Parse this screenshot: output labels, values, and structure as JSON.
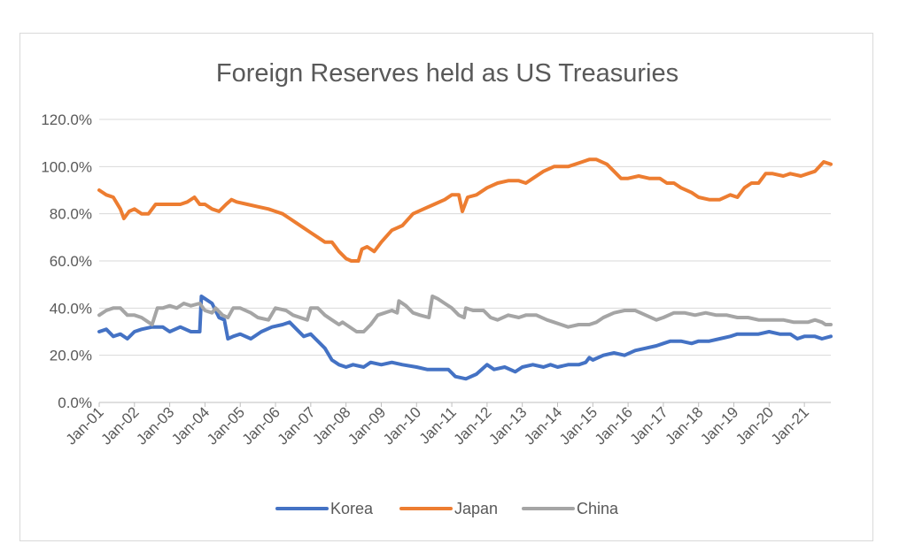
{
  "chart_data": {
    "type": "line",
    "title": "Foreign Reserves held as US Treasuries",
    "xlabel": "",
    "ylabel": "",
    "ylim": [
      0,
      120
    ],
    "yticks": [
      "0.0%",
      "20.0%",
      "40.0%",
      "60.0%",
      "80.0%",
      "100.0%",
      "120.0%"
    ],
    "yticks_values": [
      0,
      20,
      40,
      60,
      80,
      100,
      120
    ],
    "xlim": [
      2001.0,
      2021.75
    ],
    "xticks": [
      "Jan-01",
      "Jan-02",
      "Jan-03",
      "Jan-04",
      "Jan-05",
      "Jan-06",
      "Jan-07",
      "Jan-08",
      "Jan-09",
      "Jan-10",
      "Jan-11",
      "Jan-12",
      "Jan-13",
      "Jan-14",
      "Jan-15",
      "Jan-16",
      "Jan-17",
      "Jan-18",
      "Jan-19",
      "Jan-20",
      "Jan-21"
    ],
    "xticks_values": [
      2001,
      2002,
      2003,
      2004,
      2005,
      2006,
      2007,
      2008,
      2009,
      2010,
      2011,
      2012,
      2013,
      2014,
      2015,
      2016,
      2017,
      2018,
      2019,
      2020,
      2021
    ],
    "grid": true,
    "legend_position": "bottom",
    "series": [
      {
        "name": "Korea",
        "color": "#4472c4",
        "points": [
          [
            2001.0,
            30
          ],
          [
            2001.2,
            31
          ],
          [
            2001.4,
            28
          ],
          [
            2001.6,
            29
          ],
          [
            2001.8,
            27
          ],
          [
            2002.0,
            30
          ],
          [
            2002.2,
            31
          ],
          [
            2002.5,
            32
          ],
          [
            2002.8,
            32
          ],
          [
            2003.0,
            30
          ],
          [
            2003.3,
            32
          ],
          [
            2003.6,
            30
          ],
          [
            2003.85,
            30
          ],
          [
            2003.9,
            45
          ],
          [
            2004.0,
            44
          ],
          [
            2004.2,
            42
          ],
          [
            2004.4,
            36
          ],
          [
            2004.55,
            35
          ],
          [
            2004.65,
            27
          ],
          [
            2004.8,
            28
          ],
          [
            2005.0,
            29
          ],
          [
            2005.3,
            27
          ],
          [
            2005.6,
            30
          ],
          [
            2005.9,
            32
          ],
          [
            2006.2,
            33
          ],
          [
            2006.4,
            34
          ],
          [
            2006.6,
            31
          ],
          [
            2006.8,
            28
          ],
          [
            2007.0,
            29
          ],
          [
            2007.2,
            26
          ],
          [
            2007.4,
            23
          ],
          [
            2007.6,
            18
          ],
          [
            2007.8,
            16
          ],
          [
            2008.0,
            15
          ],
          [
            2008.2,
            16
          ],
          [
            2008.5,
            15
          ],
          [
            2008.7,
            17
          ],
          [
            2009.0,
            16
          ],
          [
            2009.3,
            17
          ],
          [
            2009.6,
            16
          ],
          [
            2010.0,
            15
          ],
          [
            2010.3,
            14
          ],
          [
            2010.6,
            14
          ],
          [
            2010.9,
            14
          ],
          [
            2011.1,
            11
          ],
          [
            2011.4,
            10
          ],
          [
            2011.7,
            12
          ],
          [
            2012.0,
            16
          ],
          [
            2012.2,
            14
          ],
          [
            2012.5,
            15
          ],
          [
            2012.8,
            13
          ],
          [
            2013.0,
            15
          ],
          [
            2013.3,
            16
          ],
          [
            2013.6,
            15
          ],
          [
            2013.8,
            16
          ],
          [
            2014.0,
            15
          ],
          [
            2014.3,
            16
          ],
          [
            2014.6,
            16
          ],
          [
            2014.8,
            17
          ],
          [
            2014.9,
            19
          ],
          [
            2015.0,
            18
          ],
          [
            2015.3,
            20
          ],
          [
            2015.6,
            21
          ],
          [
            2015.9,
            20
          ],
          [
            2016.2,
            22
          ],
          [
            2016.5,
            23
          ],
          [
            2016.8,
            24
          ],
          [
            2017.0,
            25
          ],
          [
            2017.2,
            26
          ],
          [
            2017.5,
            26
          ],
          [
            2017.8,
            25
          ],
          [
            2018.0,
            26
          ],
          [
            2018.3,
            26
          ],
          [
            2018.6,
            27
          ],
          [
            2018.9,
            28
          ],
          [
            2019.1,
            29
          ],
          [
            2019.4,
            29
          ],
          [
            2019.7,
            29
          ],
          [
            2020.0,
            30
          ],
          [
            2020.3,
            29
          ],
          [
            2020.6,
            29
          ],
          [
            2020.8,
            27
          ],
          [
            2021.0,
            28
          ],
          [
            2021.3,
            28
          ],
          [
            2021.5,
            27
          ],
          [
            2021.75,
            28
          ]
        ]
      },
      {
        "name": "Japan",
        "color": "#ed7d31",
        "points": [
          [
            2001.0,
            90
          ],
          [
            2001.2,
            88
          ],
          [
            2001.4,
            87
          ],
          [
            2001.6,
            82
          ],
          [
            2001.7,
            78
          ],
          [
            2001.85,
            81
          ],
          [
            2002.0,
            82
          ],
          [
            2002.2,
            80
          ],
          [
            2002.4,
            80
          ],
          [
            2002.6,
            84
          ],
          [
            2002.8,
            84
          ],
          [
            2003.0,
            84
          ],
          [
            2003.3,
            84
          ],
          [
            2003.5,
            85
          ],
          [
            2003.7,
            87
          ],
          [
            2003.85,
            84
          ],
          [
            2004.0,
            84
          ],
          [
            2004.2,
            82
          ],
          [
            2004.4,
            81
          ],
          [
            2004.6,
            84
          ],
          [
            2004.75,
            86
          ],
          [
            2004.9,
            85
          ],
          [
            2005.2,
            84
          ],
          [
            2005.5,
            83
          ],
          [
            2005.8,
            82
          ],
          [
            2006.0,
            81
          ],
          [
            2006.2,
            80
          ],
          [
            2006.4,
            78
          ],
          [
            2006.6,
            76
          ],
          [
            2006.8,
            74
          ],
          [
            2007.0,
            72
          ],
          [
            2007.2,
            70
          ],
          [
            2007.4,
            68
          ],
          [
            2007.6,
            68
          ],
          [
            2007.8,
            64
          ],
          [
            2008.0,
            61
          ],
          [
            2008.15,
            60
          ],
          [
            2008.35,
            60
          ],
          [
            2008.45,
            65
          ],
          [
            2008.6,
            66
          ],
          [
            2008.8,
            64
          ],
          [
            2009.0,
            68
          ],
          [
            2009.3,
            73
          ],
          [
            2009.6,
            75
          ],
          [
            2009.9,
            80
          ],
          [
            2010.2,
            82
          ],
          [
            2010.5,
            84
          ],
          [
            2010.8,
            86
          ],
          [
            2011.0,
            88
          ],
          [
            2011.2,
            88
          ],
          [
            2011.3,
            81
          ],
          [
            2011.45,
            87
          ],
          [
            2011.7,
            88
          ],
          [
            2012.0,
            91
          ],
          [
            2012.3,
            93
          ],
          [
            2012.6,
            94
          ],
          [
            2012.9,
            94
          ],
          [
            2013.1,
            93
          ],
          [
            2013.3,
            95
          ],
          [
            2013.6,
            98
          ],
          [
            2013.9,
            100
          ],
          [
            2014.1,
            100
          ],
          [
            2014.3,
            100
          ],
          [
            2014.5,
            101
          ],
          [
            2014.7,
            102
          ],
          [
            2014.9,
            103
          ],
          [
            2015.1,
            103
          ],
          [
            2015.4,
            101
          ],
          [
            2015.6,
            98
          ],
          [
            2015.8,
            95
          ],
          [
            2016.0,
            95
          ],
          [
            2016.3,
            96
          ],
          [
            2016.6,
            95
          ],
          [
            2016.9,
            95
          ],
          [
            2017.1,
            93
          ],
          [
            2017.3,
            93
          ],
          [
            2017.5,
            91
          ],
          [
            2017.8,
            89
          ],
          [
            2018.0,
            87
          ],
          [
            2018.3,
            86
          ],
          [
            2018.6,
            86
          ],
          [
            2018.9,
            88
          ],
          [
            2019.1,
            87
          ],
          [
            2019.3,
            91
          ],
          [
            2019.5,
            93
          ],
          [
            2019.7,
            93
          ],
          [
            2019.9,
            97
          ],
          [
            2020.1,
            97
          ],
          [
            2020.4,
            96
          ],
          [
            2020.6,
            97
          ],
          [
            2020.9,
            96
          ],
          [
            2021.1,
            97
          ],
          [
            2021.3,
            98
          ],
          [
            2021.55,
            102
          ],
          [
            2021.75,
            101
          ]
        ]
      },
      {
        "name": "China",
        "color": "#a5a5a5",
        "points": [
          [
            2001.0,
            37
          ],
          [
            2001.2,
            39
          ],
          [
            2001.4,
            40
          ],
          [
            2001.6,
            40
          ],
          [
            2001.8,
            37
          ],
          [
            2002.0,
            37
          ],
          [
            2002.2,
            36
          ],
          [
            2002.4,
            34
          ],
          [
            2002.5,
            33
          ],
          [
            2002.65,
            40
          ],
          [
            2002.8,
            40
          ],
          [
            2003.0,
            41
          ],
          [
            2003.2,
            40
          ],
          [
            2003.4,
            42
          ],
          [
            2003.6,
            41
          ],
          [
            2003.85,
            42
          ],
          [
            2004.0,
            39
          ],
          [
            2004.2,
            38
          ],
          [
            2004.3,
            40
          ],
          [
            2004.5,
            37
          ],
          [
            2004.65,
            36
          ],
          [
            2004.8,
            40
          ],
          [
            2005.0,
            40
          ],
          [
            2005.3,
            38
          ],
          [
            2005.5,
            36
          ],
          [
            2005.8,
            35
          ],
          [
            2006.0,
            40
          ],
          [
            2006.3,
            39
          ],
          [
            2006.5,
            37
          ],
          [
            2006.7,
            36
          ],
          [
            2006.9,
            35
          ],
          [
            2007.0,
            40
          ],
          [
            2007.2,
            40
          ],
          [
            2007.4,
            37
          ],
          [
            2007.6,
            35
          ],
          [
            2007.8,
            33
          ],
          [
            2007.9,
            34
          ],
          [
            2008.0,
            33
          ],
          [
            2008.3,
            30
          ],
          [
            2008.5,
            30
          ],
          [
            2008.7,
            33
          ],
          [
            2008.9,
            37
          ],
          [
            2009.1,
            38
          ],
          [
            2009.3,
            39
          ],
          [
            2009.45,
            38
          ],
          [
            2009.5,
            43
          ],
          [
            2009.7,
            41
          ],
          [
            2009.9,
            38
          ],
          [
            2010.1,
            37
          ],
          [
            2010.35,
            36
          ],
          [
            2010.45,
            45
          ],
          [
            2010.6,
            44
          ],
          [
            2010.8,
            42
          ],
          [
            2011.0,
            40
          ],
          [
            2011.2,
            37
          ],
          [
            2011.35,
            36
          ],
          [
            2011.4,
            40
          ],
          [
            2011.6,
            39
          ],
          [
            2011.9,
            39
          ],
          [
            2012.1,
            36
          ],
          [
            2012.3,
            35
          ],
          [
            2012.6,
            37
          ],
          [
            2012.9,
            36
          ],
          [
            2013.1,
            37
          ],
          [
            2013.4,
            37
          ],
          [
            2013.7,
            35
          ],
          [
            2013.9,
            34
          ],
          [
            2014.1,
            33
          ],
          [
            2014.3,
            32
          ],
          [
            2014.6,
            33
          ],
          [
            2014.9,
            33
          ],
          [
            2015.1,
            34
          ],
          [
            2015.3,
            36
          ],
          [
            2015.6,
            38
          ],
          [
            2015.9,
            39
          ],
          [
            2016.2,
            39
          ],
          [
            2016.5,
            37
          ],
          [
            2016.8,
            35
          ],
          [
            2017.0,
            36
          ],
          [
            2017.3,
            38
          ],
          [
            2017.6,
            38
          ],
          [
            2017.9,
            37
          ],
          [
            2018.2,
            38
          ],
          [
            2018.5,
            37
          ],
          [
            2018.8,
            37
          ],
          [
            2019.1,
            36
          ],
          [
            2019.4,
            36
          ],
          [
            2019.7,
            35
          ],
          [
            2019.9,
            35
          ],
          [
            2020.1,
            35
          ],
          [
            2020.4,
            35
          ],
          [
            2020.7,
            34
          ],
          [
            2020.9,
            34
          ],
          [
            2021.1,
            34
          ],
          [
            2021.3,
            35
          ],
          [
            2021.5,
            34
          ],
          [
            2021.6,
            33
          ],
          [
            2021.75,
            33
          ]
        ]
      }
    ]
  }
}
